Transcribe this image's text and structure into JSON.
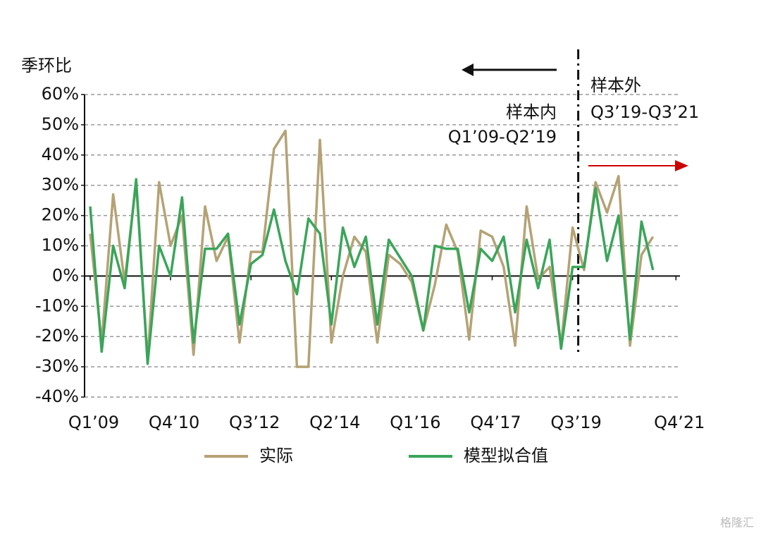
{
  "chart_data": {
    "type": "line",
    "y_axis_label": "季环比",
    "annotations": [
      "样本内",
      "Q1’09-Q2’19",
      "样本外",
      "Q3’19-Q3’21"
    ],
    "watermark": "格隆汇",
    "categories": [
      "Q1’09",
      null,
      null,
      null,
      null,
      null,
      null,
      "Q4’10",
      null,
      null,
      null,
      null,
      null,
      null,
      "Q3’12",
      null,
      null,
      null,
      null,
      null,
      null,
      "Q2’14",
      null,
      null,
      null,
      null,
      null,
      null,
      "Q1’16",
      null,
      null,
      null,
      null,
      null,
      null,
      "Q4’17",
      null,
      null,
      null,
      null,
      null,
      null,
      "Q3’19",
      null,
      null,
      null,
      null,
      null,
      null,
      null,
      null,
      "Q4’21"
    ],
    "series": [
      {
        "name": "实际",
        "color": "#b5a275",
        "values": [
          14,
          -22,
          27,
          -2,
          31,
          -28,
          31,
          10,
          20,
          -26,
          23,
          5,
          13,
          -22,
          8,
          8,
          42,
          48,
          -30,
          -30,
          45,
          -22,
          0,
          13,
          8,
          -22,
          7,
          4,
          -2,
          -18,
          -3,
          17,
          8,
          -21,
          15,
          13,
          3,
          -23,
          23,
          -1,
          3,
          -23,
          16,
          2,
          31,
          21,
          33,
          -23,
          7,
          13,
          null,
          null
        ]
      },
      {
        "name": "模型拟合值",
        "color": "#3aa55a",
        "values": [
          23,
          -25,
          10,
          -4,
          32,
          -29,
          10,
          0,
          26,
          -22,
          9,
          9,
          14,
          -16,
          4,
          7,
          22,
          5,
          -6,
          19,
          14,
          -16,
          16,
          3,
          13,
          -16,
          12,
          6,
          0,
          -18,
          10,
          9,
          9,
          -12,
          9,
          5,
          13,
          -12,
          12,
          -4,
          12,
          -24,
          3,
          3,
          29,
          5,
          20,
          -21,
          18,
          2,
          null,
          null
        ]
      }
    ],
    "ylim": [
      -40,
      60
    ],
    "yticks": [
      {
        "value": -40,
        "label": "-40%"
      },
      {
        "value": -30,
        "label": "-30%"
      },
      {
        "value": -20,
        "label": "-20%"
      },
      {
        "value": -10,
        "label": "-10%"
      },
      {
        "value": 0,
        "label": "0%"
      },
      {
        "value": 10,
        "label": "10%"
      },
      {
        "value": 20,
        "label": "20%"
      },
      {
        "value": 30,
        "label": "30%"
      },
      {
        "value": 40,
        "label": "40%"
      },
      {
        "value": 50,
        "label": "50%"
      },
      {
        "value": 60,
        "label": "60%"
      }
    ],
    "grid": true
  }
}
